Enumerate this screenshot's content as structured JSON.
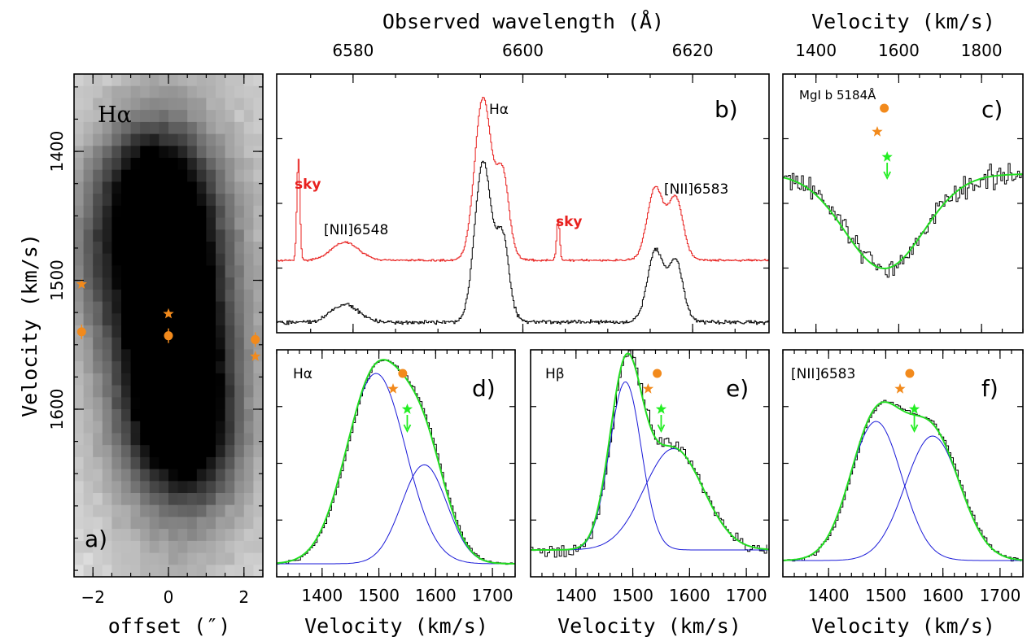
{
  "colors": {
    "red_spectrum": "#e8201e",
    "black_spectrum": "#000000",
    "fit_green": "#22dd22",
    "component_blue": "#1a1ad8",
    "marker_orange": "#f28a1c",
    "marker_green": "#22ee22"
  },
  "figure": {
    "top_axis_b_label": "Observed wavelength (Å)",
    "top_axis_c_label": "Velocity (km/s)",
    "bottom_label_a": "offset (″)",
    "bottom_label_d": "Velocity (km/s)",
    "bottom_label_e": "Velocity (km/s)",
    "bottom_label_f": "Velocity (km/s)",
    "left_label_a": "Velocity (km/s)"
  },
  "panels": {
    "a": {
      "letter": "a)",
      "title": "Hα"
    },
    "b": {
      "letter": "b)",
      "line_halpha": "Hα",
      "line_nii_6548": "[NII]6548",
      "line_nii_6583": "[NII]6583",
      "sky1": "sky",
      "sky2": "sky"
    },
    "c": {
      "letter": "c)",
      "title": "MgI b 5184Å"
    },
    "d": {
      "letter": "d)",
      "title": "Hα"
    },
    "e": {
      "letter": "e)",
      "title": "Hβ"
    },
    "f": {
      "letter": "f)",
      "title": "[NII]6583"
    }
  },
  "chart_data": [
    {
      "panel": "a",
      "type": "heatmap",
      "description_title": "Hα",
      "xlabel": "offset (″)",
      "ylabel": "Velocity (km/s)",
      "xlim": [
        -2.5,
        2.5
      ],
      "ylim": [
        1730,
        1340
      ],
      "xticks": [
        -2,
        0,
        2
      ],
      "yticks": [
        1400,
        1500,
        1600
      ],
      "emission_ridge": {
        "center_offset": 0,
        "velocity_range": [
          1400,
          1640
        ]
      },
      "markers": [
        {
          "symbol": "star",
          "color": "orange",
          "offset": -2.3,
          "velocity": 1503
        },
        {
          "symbol": "circle",
          "color": "orange",
          "offset": -2.3,
          "velocity": 1540
        },
        {
          "symbol": "star",
          "color": "orange",
          "offset": 0.0,
          "velocity": 1526
        },
        {
          "symbol": "circle",
          "color": "orange",
          "offset": 0.0,
          "velocity": 1543
        },
        {
          "symbol": "circle",
          "color": "orange",
          "offset": 2.3,
          "velocity": 1546
        },
        {
          "symbol": "star",
          "color": "orange",
          "offset": 2.3,
          "velocity": 1559
        }
      ]
    },
    {
      "panel": "b",
      "type": "line",
      "xlabel": "Observed wavelength (Å)",
      "xlim": [
        6571,
        6629
      ],
      "xticks": [
        6580,
        6600,
        6620
      ],
      "series": [
        {
          "color": "red",
          "features": [
            {
              "label": "sky",
              "wavelength": 6573.5,
              "kind": "sky"
            },
            {
              "label": "[NII]6548",
              "wavelength": 6579,
              "kind": "emission"
            },
            {
              "label": "Hα",
              "wavelength": 6595.5,
              "kind": "emission"
            },
            {
              "label": "sky",
              "wavelength": 6604,
              "kind": "sky"
            },
            {
              "label": "[NII]6583",
              "wavelength": 6616.5,
              "kind": "emission"
            }
          ]
        },
        {
          "color": "black",
          "features": [
            {
              "label": "[NII]6548",
              "wavelength": 6579,
              "kind": "emission"
            },
            {
              "label": "Hα",
              "wavelength": 6595.5,
              "kind": "emission"
            },
            {
              "label": "[NII]6583",
              "wavelength": 6616.5,
              "kind": "emission"
            }
          ]
        }
      ]
    },
    {
      "panel": "c",
      "type": "line",
      "title": "MgI b 5184Å",
      "xlabel": "Velocity (km/s)",
      "xlim": [
        1320,
        1900
      ],
      "xticks": [
        1400,
        1600,
        1800
      ],
      "absorption": {
        "center": 1565,
        "sigma": 95,
        "depth": 0.38
      },
      "markers": [
        {
          "symbol": "circle",
          "color": "orange",
          "velocity": 1565
        },
        {
          "symbol": "star",
          "color": "orange",
          "velocity": 1548
        },
        {
          "symbol": "star",
          "color": "green",
          "velocity": 1572,
          "arrow": "down"
        }
      ]
    },
    {
      "panel": "d",
      "type": "line",
      "title": "Hα",
      "xlabel": "Velocity (km/s)",
      "xlim": [
        1320,
        1740
      ],
      "xticks": [
        1400,
        1500,
        1600,
        1700
      ],
      "components": [
        {
          "center": 1495,
          "sigma": 52,
          "amplitude": 1.0
        },
        {
          "center": 1580,
          "sigma": 40,
          "amplitude": 0.52
        }
      ],
      "markers": [
        {
          "symbol": "circle",
          "color": "orange",
          "velocity": 1542
        },
        {
          "symbol": "star",
          "color": "orange",
          "velocity": 1525
        },
        {
          "symbol": "star",
          "color": "green",
          "velocity": 1550,
          "arrow": "down"
        }
      ]
    },
    {
      "panel": "e",
      "type": "line",
      "title": "Hβ",
      "xlabel": "Velocity (km/s)",
      "xlim": [
        1320,
        1740
      ],
      "xticks": [
        1400,
        1500,
        1600,
        1700
      ],
      "components": [
        {
          "center": 1487,
          "sigma": 28,
          "amplitude": 0.78
        },
        {
          "center": 1572,
          "sigma": 52,
          "amplitude": 0.47
        }
      ],
      "markers": [
        {
          "symbol": "circle",
          "color": "orange",
          "velocity": 1543
        },
        {
          "symbol": "star",
          "color": "orange",
          "velocity": 1527
        },
        {
          "symbol": "star",
          "color": "green",
          "velocity": 1550,
          "arrow": "down"
        }
      ]
    },
    {
      "panel": "f",
      "type": "line",
      "title": "[NII]6583",
      "xlabel": "Velocity (km/s)",
      "xlim": [
        1320,
        1740
      ],
      "xticks": [
        1400,
        1500,
        1600,
        1700
      ],
      "components": [
        {
          "center": 1483,
          "sigma": 45,
          "amplitude": 0.76
        },
        {
          "center": 1582,
          "sigma": 48,
          "amplitude": 0.68
        }
      ],
      "markers": [
        {
          "symbol": "circle",
          "color": "orange",
          "velocity": 1542
        },
        {
          "symbol": "star",
          "color": "orange",
          "velocity": 1525
        },
        {
          "symbol": "star",
          "color": "green",
          "velocity": 1550,
          "arrow": "down"
        }
      ]
    }
  ]
}
